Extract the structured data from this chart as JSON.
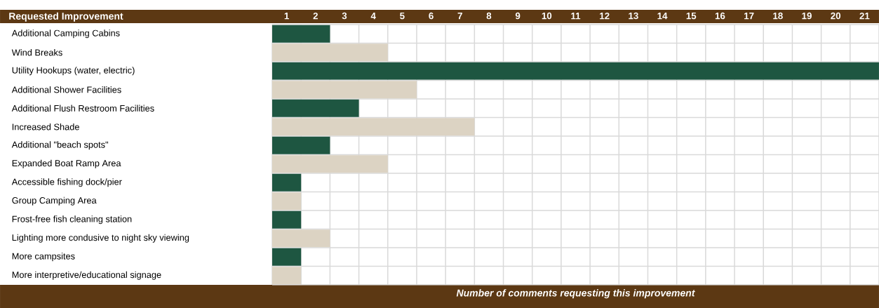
{
  "chart_data": {
    "type": "bar",
    "orientation": "horizontal",
    "ylabel": "Requested Improvement",
    "xlabel": "Number of comments requesting this improvement",
    "categories": [
      "Additional Camping Cabins",
      "Wind Breaks",
      "Utility Hookups (water, electric)",
      "Additional Shower Facilities",
      "Additional Flush Restroom Facilities",
      "Increased Shade",
      "Additional \"beach spots\"",
      "Expanded Boat Ramp Area",
      "Accessible fishing dock/pier",
      "Group Camping Area",
      "Frost-free fish cleaning station",
      "Lighting more condusive to night sky viewing",
      "More campsites",
      "More interpretive/educational signage"
    ],
    "values": [
      2,
      4,
      21,
      5,
      3,
      7,
      2,
      4,
      1,
      1,
      1,
      2,
      1,
      1
    ],
    "colors": [
      "#1e5641",
      "#dcd3c3",
      "#1e5641",
      "#dcd3c3",
      "#1e5641",
      "#dcd3c3",
      "#1e5641",
      "#dcd3c3",
      "#1e5641",
      "#dcd3c3",
      "#1e5641",
      "#dcd3c3",
      "#1e5641",
      "#dcd3c3"
    ],
    "xlim": [
      0,
      21
    ],
    "xticks": [
      {
        "value": 0.5,
        "label": "1"
      },
      {
        "value": 1.5,
        "label": "2"
      },
      {
        "value": 2.5,
        "label": "3"
      },
      {
        "value": 3.5,
        "label": "4"
      },
      {
        "value": 4.5,
        "label": "5"
      },
      {
        "value": 5.5,
        "label": "6"
      },
      {
        "value": 6.5,
        "label": "7"
      },
      {
        "value": 7.5,
        "label": "8"
      },
      {
        "value": 8.5,
        "label": "9"
      },
      {
        "value": 9.5,
        "label": "10"
      },
      {
        "value": 10.5,
        "label": "11"
      },
      {
        "value": 11.5,
        "label": "12"
      },
      {
        "value": 12.5,
        "label": "13"
      },
      {
        "value": 13.5,
        "label": "14"
      },
      {
        "value": 14.5,
        "label": "15"
      },
      {
        "value": 15.5,
        "label": "16"
      },
      {
        "value": 16.5,
        "label": "17"
      },
      {
        "value": 17.5,
        "label": "18"
      },
      {
        "value": 18.5,
        "label": "19"
      },
      {
        "value": 19.5,
        "label": "20"
      },
      {
        "value": 20.5,
        "label": "21"
      }
    ],
    "grid": true
  }
}
